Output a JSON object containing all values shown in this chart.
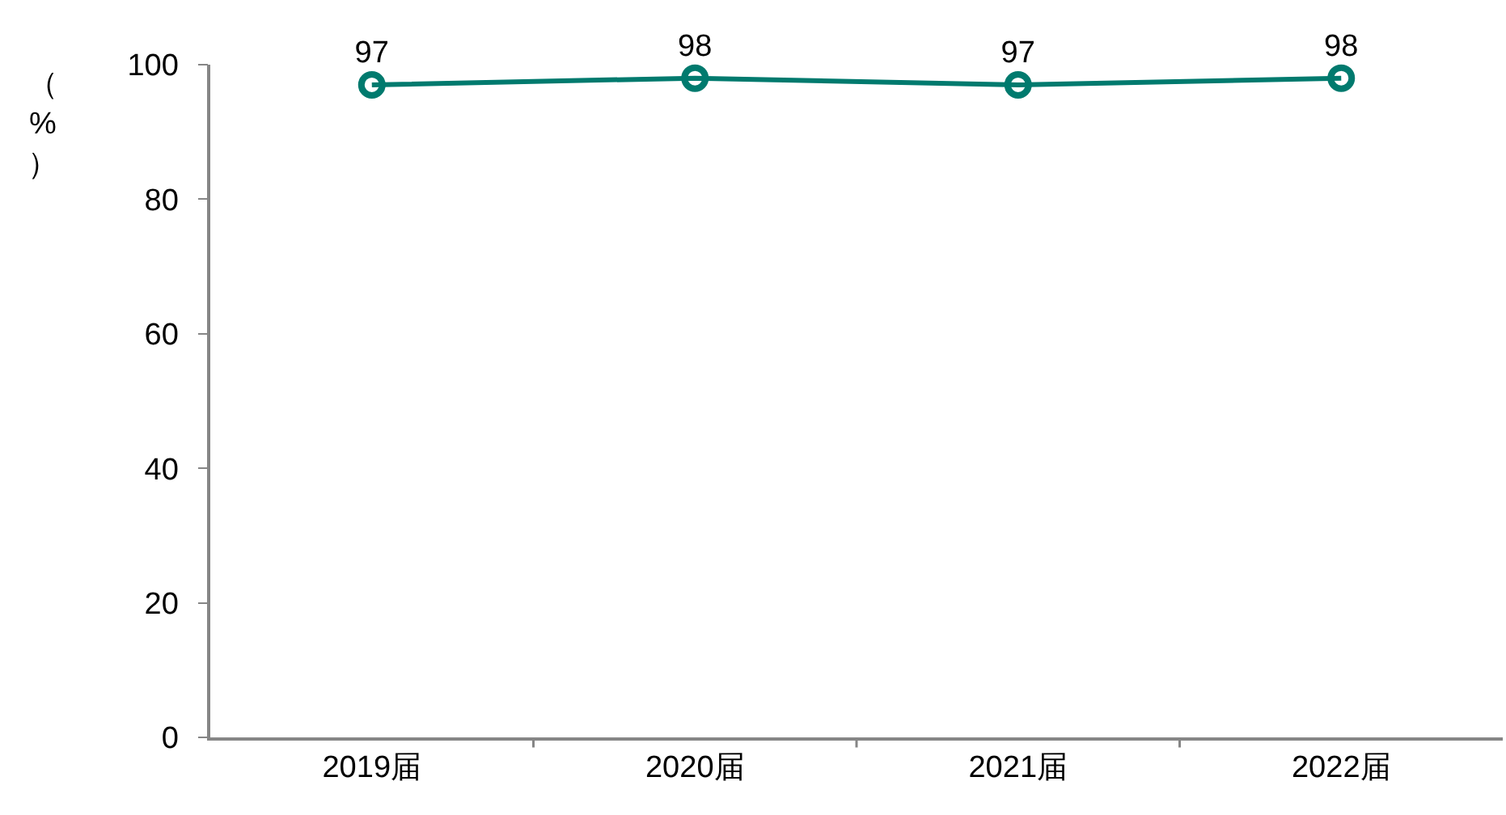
{
  "chart_data": {
    "type": "line",
    "ylabel": "（%）",
    "categories": [
      "2019届",
      "2020届",
      "2021届",
      "2022届"
    ],
    "series": [
      {
        "color": "#007a6e",
        "values": [
          97,
          98,
          97,
          98
        ]
      }
    ],
    "ylim": [
      0,
      100
    ],
    "yticks": [
      0,
      20,
      40,
      60,
      80,
      100
    ],
    "grid": false,
    "marker": "circle",
    "line_style": "solid",
    "data_labels": true
  }
}
